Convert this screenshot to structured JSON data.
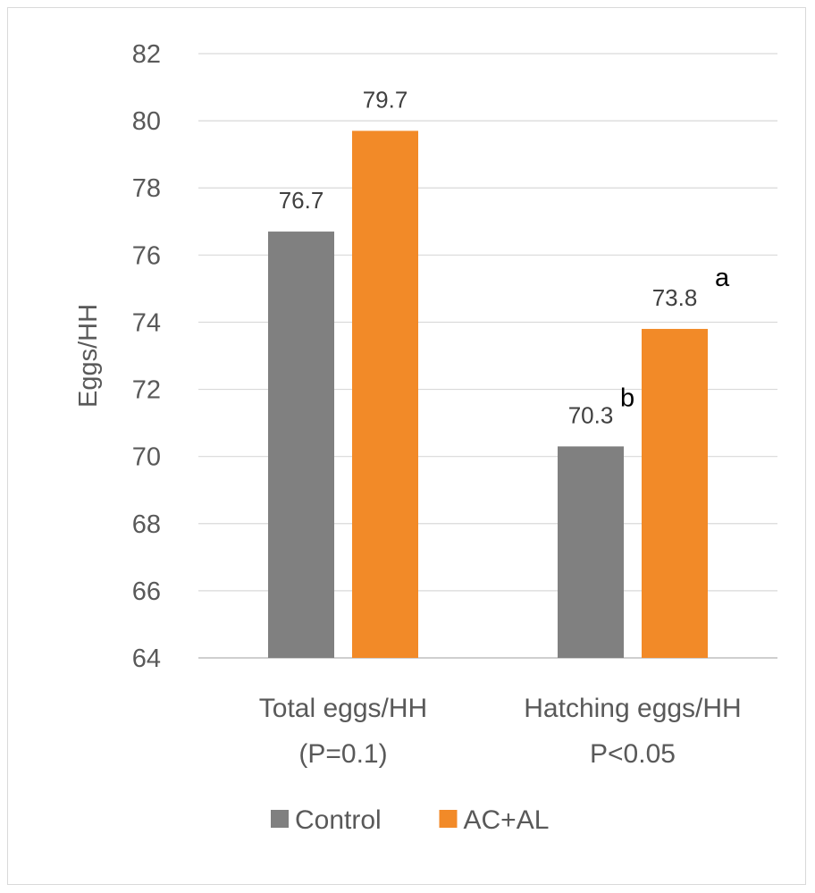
{
  "chart_data": {
    "type": "bar",
    "title": "",
    "ylabel": "Eggs/HH",
    "xlabel": "",
    "ylim": [
      64,
      82
    ],
    "yticks": [
      64,
      66,
      68,
      70,
      72,
      74,
      76,
      78,
      80,
      82
    ],
    "grid": true,
    "legend_position": "bottom",
    "categories": [
      [
        "Total eggs/HH",
        "(P=0.1)"
      ],
      [
        "Hatching eggs/HH",
        "P<0.05"
      ]
    ],
    "series": [
      {
        "name": "Control",
        "color": "#808080",
        "values": [
          76.7,
          70.3
        ],
        "labels": [
          "76.7",
          "70.3"
        ],
        "significance": [
          "",
          "b"
        ]
      },
      {
        "name": "AC+AL",
        "color": "#f28a28",
        "values": [
          79.7,
          73.8
        ],
        "labels": [
          "79.7",
          "73.8"
        ],
        "significance": [
          "",
          "a"
        ]
      }
    ]
  }
}
